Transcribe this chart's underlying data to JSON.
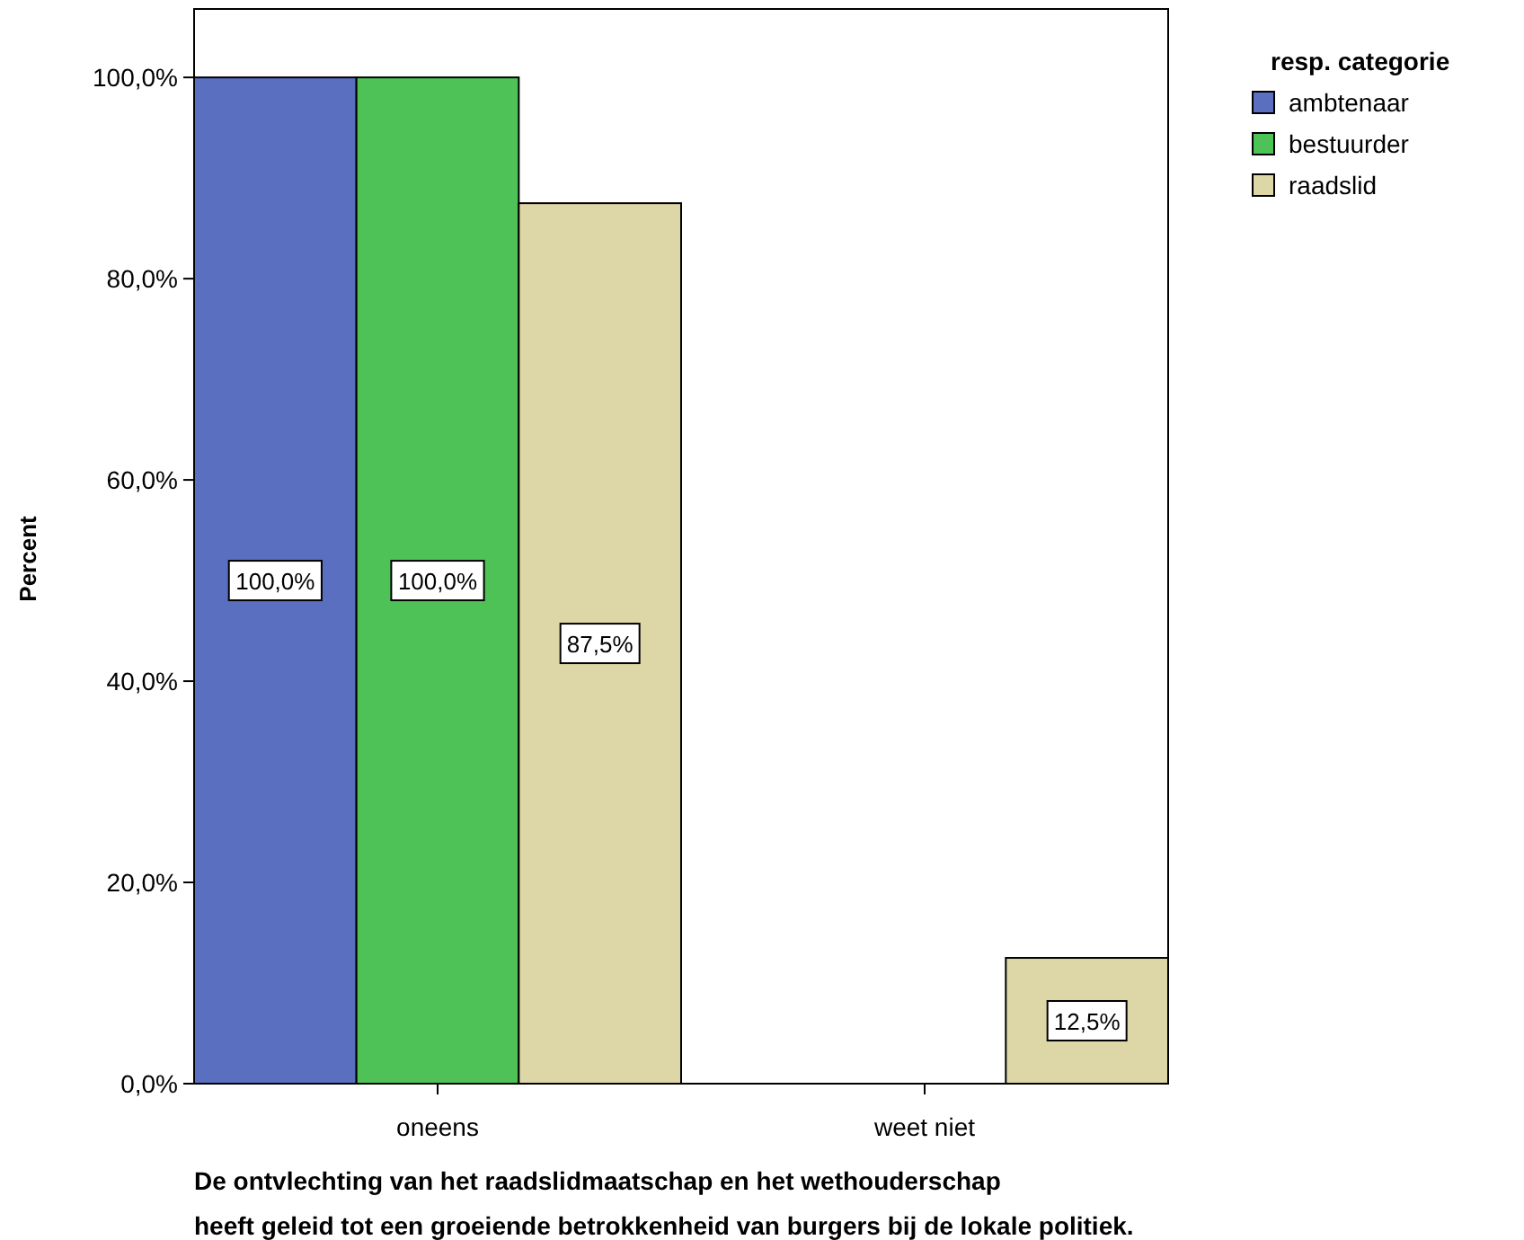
{
  "chart_data": {
    "type": "bar",
    "ylabel": "Percent",
    "xlabel": "De ontvlechting van het raadslidmaatschap en het wethouderschap\nheeft geleid tot een groeiende betrokkenheid van burgers bij de lokale politiek.",
    "legend_title": "resp. categorie",
    "legend": "top right",
    "grid": false,
    "categories": [
      "oneens",
      "weet niet"
    ],
    "series": [
      {
        "name": "ambtenaar",
        "color": "#5a6fc0",
        "values": [
          100,
          0
        ],
        "value_labels": [
          "100,0%",
          null
        ]
      },
      {
        "name": "bestuurder",
        "color": "#4fc257",
        "values": [
          100,
          0
        ],
        "value_labels": [
          "100,0%",
          null
        ]
      },
      {
        "name": "raadslid",
        "color": "#ddd6a6",
        "values": [
          87.5,
          12.5
        ],
        "value_labels": [
          "87,5%",
          "12,5%"
        ]
      }
    ],
    "ylim": [
      0,
      106.8
    ],
    "yticks": [
      {
        "value": 0,
        "label": "0,0%"
      },
      {
        "value": 20,
        "label": "20,0%"
      },
      {
        "value": 40,
        "label": "40,0%"
      },
      {
        "value": 60,
        "label": "60,0%"
      },
      {
        "value": 80,
        "label": "80,0%"
      },
      {
        "value": 100,
        "label": "100,0%"
      }
    ]
  }
}
